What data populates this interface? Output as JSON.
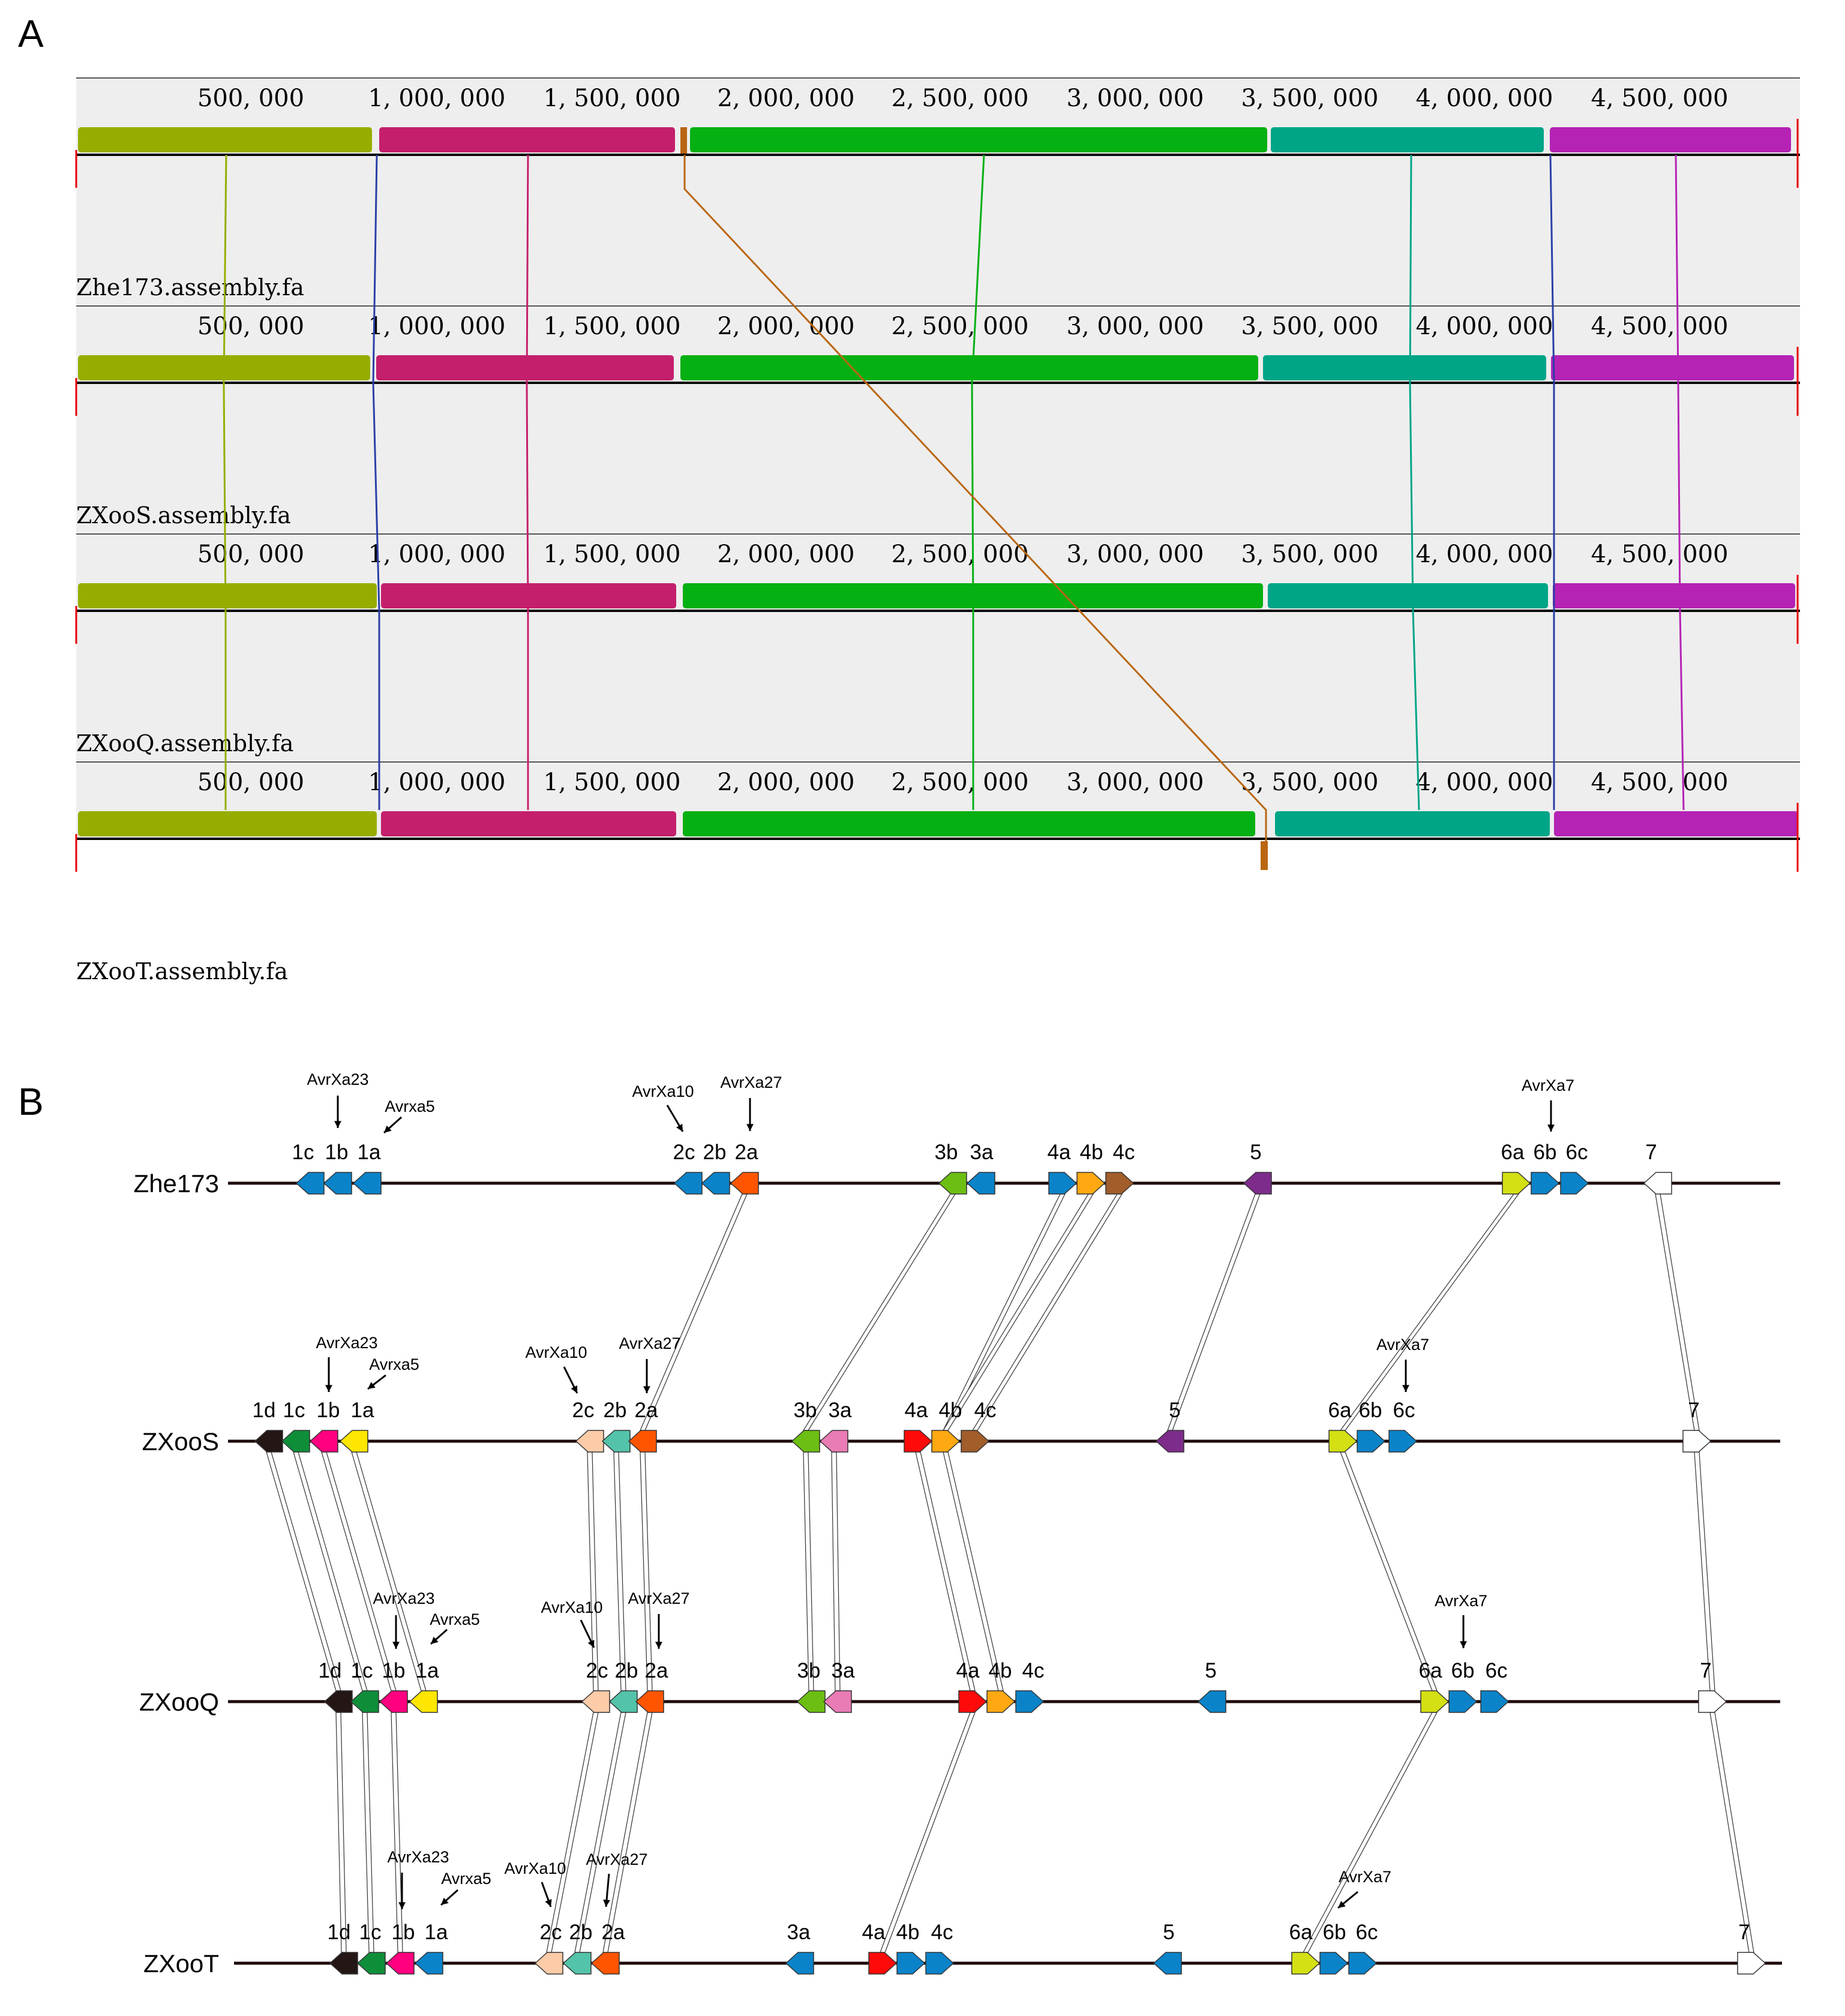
{
  "panels": {
    "a": "A",
    "b": "B"
  },
  "panel_a": {
    "tick_labels": [
      "500, 000",
      "1, 000, 000",
      "1, 500, 000",
      "2, 000, 000",
      "2, 500, 000",
      "3, 000, 000",
      "3, 500, 000",
      "4, 000, 000",
      "4, 500, 000"
    ],
    "tracks": [
      {
        "name": "Zhe173.assembly.fa"
      },
      {
        "name": "ZXooS.assembly.fa"
      },
      {
        "name": "ZXooQ.assembly.fa"
      },
      {
        "name": "ZXooT.assembly.fa"
      }
    ],
    "block_colors": [
      "#96ad00",
      "#c41f6c",
      "#b96613",
      "#05b013",
      "#00a587",
      "#b523b5",
      "#2b3fa8"
    ]
  },
  "panel_b": {
    "tracks": [
      {
        "name": "Zhe173",
        "genes": [
          {
            "label": "1c",
            "color": "#0b83c9",
            "dir": "left"
          },
          {
            "label": "1b",
            "color": "#0b83c9",
            "dir": "left"
          },
          {
            "label": "1a",
            "color": "#0b83c9",
            "dir": "left"
          },
          {
            "label": "2c",
            "color": "#0b83c9",
            "dir": "left"
          },
          {
            "label": "2b",
            "color": "#0b83c9",
            "dir": "left"
          },
          {
            "label": "2a",
            "color": "#ff5500",
            "dir": "left"
          },
          {
            "label": "3b",
            "color": "#6cbf12",
            "dir": "left"
          },
          {
            "label": "3a",
            "color": "#0b83c9",
            "dir": "left"
          },
          {
            "label": "4a",
            "color": "#0b83c9",
            "dir": "right"
          },
          {
            "label": "4b",
            "color": "#ffa812",
            "dir": "right"
          },
          {
            "label": "4c",
            "color": "#a15d2a",
            "dir": "right"
          },
          {
            "label": "5",
            "color": "#7e2c8c",
            "dir": "left"
          },
          {
            "label": "6a",
            "color": "#d4e013",
            "dir": "right"
          },
          {
            "label": "6b",
            "color": "#0b83c9",
            "dir": "right"
          },
          {
            "label": "6c",
            "color": "#0b83c9",
            "dir": "right"
          },
          {
            "label": "7",
            "color": "#ffffff",
            "dir": "left"
          }
        ],
        "avr": [
          {
            "text": "AvrXa23"
          },
          {
            "text": "Avrxa5"
          },
          {
            "text": "AvrXa10"
          },
          {
            "text": "AvrXa27"
          },
          {
            "text": "AvrXa7"
          }
        ]
      },
      {
        "name": "ZXooS",
        "genes": [
          {
            "label": "1d",
            "color": "#231614",
            "dir": "left"
          },
          {
            "label": "1c",
            "color": "#0f8e3a",
            "dir": "left"
          },
          {
            "label": "1b",
            "color": "#ff007f",
            "dir": "left"
          },
          {
            "label": "1a",
            "color": "#ffe600",
            "dir": "left"
          },
          {
            "label": "2c",
            "color": "#fccba8",
            "dir": "left"
          },
          {
            "label": "2b",
            "color": "#53c3a9",
            "dir": "left"
          },
          {
            "label": "2a",
            "color": "#ff5500",
            "dir": "left"
          },
          {
            "label": "3b",
            "color": "#6cbf12",
            "dir": "left"
          },
          {
            "label": "3a",
            "color": "#e97bb5",
            "dir": "left"
          },
          {
            "label": "4a",
            "color": "#ff0a0a",
            "dir": "right"
          },
          {
            "label": "4b",
            "color": "#ffa812",
            "dir": "right"
          },
          {
            "label": "4c",
            "color": "#a15d2a",
            "dir": "right"
          },
          {
            "label": "5",
            "color": "#7e2c8c",
            "dir": "left"
          },
          {
            "label": "6a",
            "color": "#d4e013",
            "dir": "right"
          },
          {
            "label": "6b",
            "color": "#0b83c9",
            "dir": "right"
          },
          {
            "label": "6c",
            "color": "#0b83c9",
            "dir": "right"
          },
          {
            "label": "7",
            "color": "#ffffff",
            "dir": "right"
          }
        ],
        "avr": [
          {
            "text": "AvrXa23"
          },
          {
            "text": "Avrxa5"
          },
          {
            "text": "AvrXa10"
          },
          {
            "text": "AvrXa27"
          },
          {
            "text": "AvrXa7"
          }
        ]
      },
      {
        "name": "ZXooQ",
        "genes": [
          {
            "label": "1d",
            "color": "#231614",
            "dir": "left"
          },
          {
            "label": "1c",
            "color": "#0f8e3a",
            "dir": "left"
          },
          {
            "label": "1b",
            "color": "#ff007f",
            "dir": "left"
          },
          {
            "label": "1a",
            "color": "#ffe600",
            "dir": "left"
          },
          {
            "label": "2c",
            "color": "#fccba8",
            "dir": "left"
          },
          {
            "label": "2b",
            "color": "#53c3a9",
            "dir": "left"
          },
          {
            "label": "2a",
            "color": "#ff5500",
            "dir": "left"
          },
          {
            "label": "3b",
            "color": "#6cbf12",
            "dir": "left"
          },
          {
            "label": "3a",
            "color": "#e97bb5",
            "dir": "left"
          },
          {
            "label": "4a",
            "color": "#ff0a0a",
            "dir": "right"
          },
          {
            "label": "4b",
            "color": "#ffa812",
            "dir": "right"
          },
          {
            "label": "4c",
            "color": "#0b83c9",
            "dir": "right"
          },
          {
            "label": "5",
            "color": "#0b83c9",
            "dir": "left"
          },
          {
            "label": "6a",
            "color": "#d4e013",
            "dir": "right"
          },
          {
            "label": "6b",
            "color": "#0b83c9",
            "dir": "right"
          },
          {
            "label": "6c",
            "color": "#0b83c9",
            "dir": "right"
          },
          {
            "label": "7",
            "color": "#ffffff",
            "dir": "right"
          }
        ],
        "avr": [
          {
            "text": "AvrXa23"
          },
          {
            "text": "Avrxa5"
          },
          {
            "text": "AvrXa10"
          },
          {
            "text": "AvrXa27"
          },
          {
            "text": "AvrXa7"
          }
        ]
      },
      {
        "name": "ZXooT",
        "genes": [
          {
            "label": "1d",
            "color": "#231614",
            "dir": "left"
          },
          {
            "label": "1c",
            "color": "#0f8e3a",
            "dir": "left"
          },
          {
            "label": "1b",
            "color": "#ff007f",
            "dir": "left"
          },
          {
            "label": "1a",
            "color": "#0b83c9",
            "dir": "left"
          },
          {
            "label": "2c",
            "color": "#fccba8",
            "dir": "left"
          },
          {
            "label": "2b",
            "color": "#53c3a9",
            "dir": "left"
          },
          {
            "label": "2a",
            "color": "#ff5500",
            "dir": "left"
          },
          {
            "label": "3a",
            "color": "#0b83c9",
            "dir": "left"
          },
          {
            "label": "4a",
            "color": "#ff0a0a",
            "dir": "right"
          },
          {
            "label": "4b",
            "color": "#0b83c9",
            "dir": "right"
          },
          {
            "label": "4c",
            "color": "#0b83c9",
            "dir": "right"
          },
          {
            "label": "5",
            "color": "#0b83c9",
            "dir": "left"
          },
          {
            "label": "6a",
            "color": "#d4e013",
            "dir": "right"
          },
          {
            "label": "6b",
            "color": "#0b83c9",
            "dir": "right"
          },
          {
            "label": "6c",
            "color": "#0b83c9",
            "dir": "right"
          },
          {
            "label": "7",
            "color": "#ffffff",
            "dir": "right"
          }
        ],
        "avr": [
          {
            "text": "AvrXa23"
          },
          {
            "text": "Avrxa5"
          },
          {
            "text": "AvrXa10"
          },
          {
            "text": "AvrXa27"
          },
          {
            "text": "AvrXa7"
          }
        ]
      }
    ]
  }
}
